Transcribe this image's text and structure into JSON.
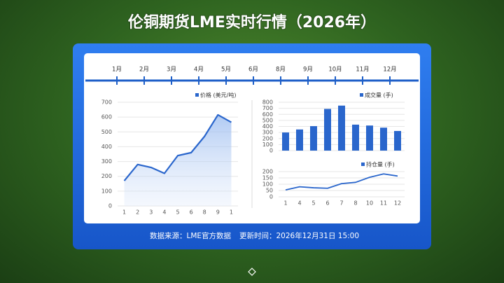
{
  "title": "伦铜期货LME实时行情（2026年）",
  "timeline": [
    "1月",
    "2月",
    "3月",
    "4月",
    "5月",
    "6月",
    "8月",
    "9月",
    "10月",
    "11月",
    "12月"
  ],
  "footer": {
    "source": "数据来源：LME官方数据",
    "updated": "更新时间：2026年12月31日  15:00"
  },
  "chart_data": [
    {
      "type": "line",
      "categories": [
        "1",
        "2",
        "3",
        "4",
        "5",
        "6",
        "8",
        "9",
        "1"
      ],
      "series": [
        {
          "name": "价格 (美元/吨)",
          "color": "#2a66cc",
          "values": [
            170,
            280,
            260,
            220,
            340,
            360,
            470,
            615,
            565
          ]
        }
      ],
      "ylim": [
        0,
        700
      ],
      "yticks": [
        0,
        100,
        200,
        300,
        400,
        500,
        600,
        700
      ],
      "grid": true
    },
    {
      "type": "bar",
      "categories": [
        null,
        null,
        null,
        null,
        null,
        null,
        null,
        null,
        null
      ],
      "series": [
        {
          "name": "成交量 (手)",
          "color": "#2a66cc",
          "values": [
            300,
            350,
            405,
            690,
            745,
            430,
            415,
            380,
            325
          ]
        }
      ],
      "ylim": [
        0,
        800
      ],
      "yticks": [
        0,
        100,
        200,
        300,
        400,
        500,
        600,
        700,
        800
      ],
      "grid": true
    },
    {
      "type": "line",
      "categories": [
        "1",
        "4",
        "5",
        "6",
        "7",
        "8",
        "10",
        "11",
        "12"
      ],
      "series": [
        {
          "name": "持仓量 (手)",
          "color": "#2a66cc",
          "values": [
            55,
            80,
            72,
            68,
            105,
            115,
            155,
            182,
            165
          ]
        }
      ],
      "ylim": [
        0,
        200
      ],
      "yticks": [
        0,
        50,
        100,
        150,
        200
      ],
      "grid": true
    }
  ]
}
